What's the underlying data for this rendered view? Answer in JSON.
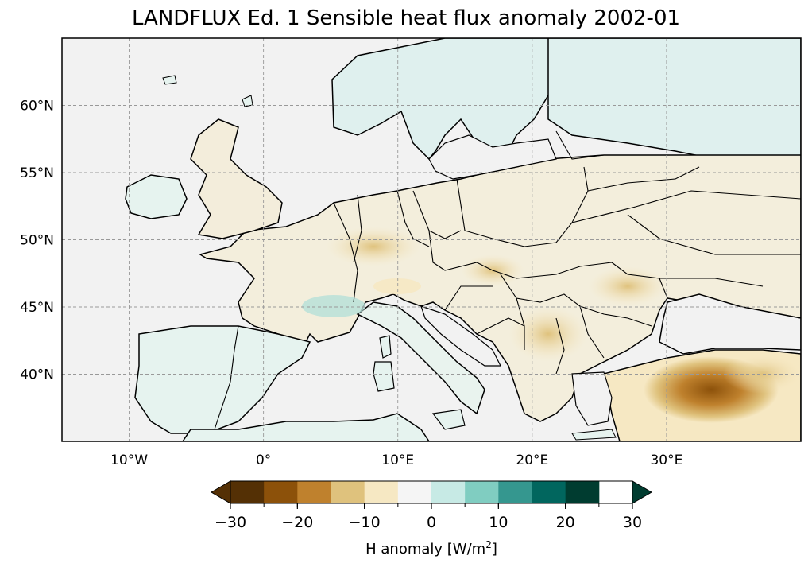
{
  "title": "LANDFLUX Ed. 1 Sensible heat flux anomaly 2002-01",
  "map": {
    "extent_lon": [
      -15,
      40
    ],
    "extent_lat": [
      35,
      65
    ],
    "lat_ticks": [
      {
        "value": 40,
        "label": "40°N"
      },
      {
        "value": 45,
        "label": "45°N"
      },
      {
        "value": 50,
        "label": "50°N"
      },
      {
        "value": 55,
        "label": "55°N"
      },
      {
        "value": 60,
        "label": "60°N"
      }
    ],
    "lon_ticks": [
      {
        "value": -10,
        "label": "10°W"
      },
      {
        "value": 0,
        "label": "0°"
      },
      {
        "value": 10,
        "label": "10°E"
      },
      {
        "value": 20,
        "label": "20°E"
      },
      {
        "value": 30,
        "label": "30°E"
      }
    ],
    "gridlines": true,
    "ocean_color": "#f2f2f2"
  },
  "colorbar": {
    "label_main": "H anomaly [W/m",
    "label_sup": "2",
    "label_end": "]",
    "levels": [
      -30,
      -25,
      -20,
      -15,
      -10,
      -5,
      0,
      5,
      10,
      15,
      20,
      25,
      30
    ],
    "tick_labels": [
      "−30",
      "−20",
      "−10",
      "0",
      "10",
      "20",
      "30"
    ],
    "tick_values": [
      -30,
      -20,
      -10,
      0,
      10,
      20,
      30
    ],
    "colors": [
      "#543005",
      "#8c510a",
      "#bf812d",
      "#dfc27d",
      "#f6e8c3",
      "#f5f5f5",
      "#c7eae5",
      "#80cdc1",
      "#35978f",
      "#01665e",
      "#003c30"
    ],
    "extend": "both"
  }
}
